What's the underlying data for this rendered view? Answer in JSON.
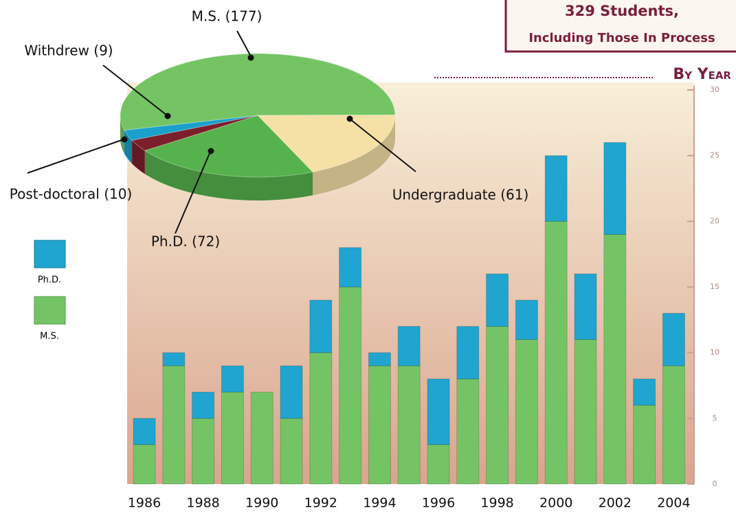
{
  "chart_data": [
    {
      "type": "pie",
      "labels": [
        "M.S. (177)",
        "Undergraduate (61)",
        "Ph.D. (72)",
        "Post-doctoral (10)",
        "Withdrew (9)"
      ],
      "values": [
        177,
        61,
        72,
        10,
        9
      ],
      "colors": [
        "#74c464",
        "#f5e0a6",
        "#55b24c",
        "#7c1f2c",
        "#1aa0cb"
      ]
    },
    {
      "type": "bar",
      "title": "329 Students,",
      "subtitle": "Including Those In Process",
      "heading": "By Year",
      "categories": [
        "1986",
        null,
        "1988",
        null,
        "1990",
        null,
        "1992",
        null,
        "1994",
        null,
        "1996",
        null,
        "1998",
        null,
        "2000",
        null,
        "2002",
        null,
        "2004"
      ],
      "series": [
        {
          "name": "M.S.",
          "color": "#74c466",
          "values": [
            3,
            9,
            5,
            7,
            7,
            5,
            10,
            15,
            9,
            9,
            3,
            8,
            12,
            11,
            20,
            11,
            19,
            6,
            9
          ]
        },
        {
          "name": "Ph.D.",
          "color": "#1fa5cf",
          "values": [
            2,
            1,
            2,
            2,
            0,
            4,
            4,
            3,
            1,
            3,
            5,
            4,
            4,
            3,
            5,
            5,
            7,
            2,
            4
          ]
        }
      ],
      "stacked": true,
      "ylim": [
        0,
        30
      ],
      "yticks": [
        0,
        5,
        10,
        15,
        20,
        25,
        30
      ]
    }
  ]
}
